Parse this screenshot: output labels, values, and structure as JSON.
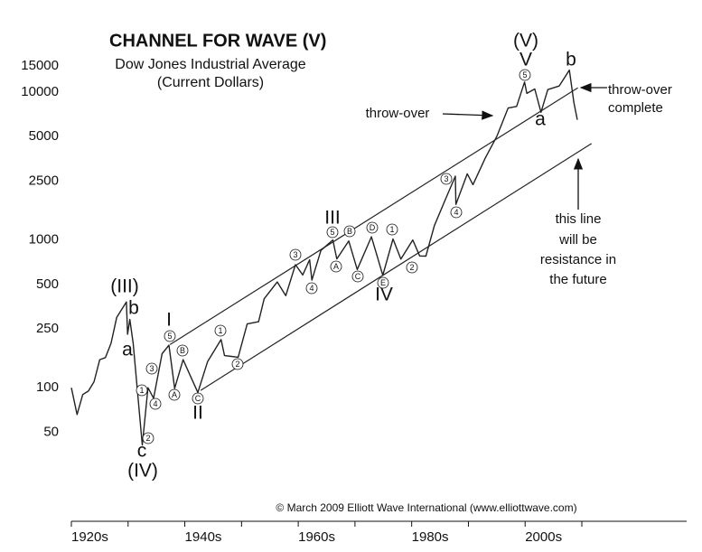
{
  "chart_data": {
    "type": "line",
    "title": "CHANNEL FOR WAVE (V)",
    "subtitle": [
      "Dow Jones Industrial Average",
      "(Current Dollars)"
    ],
    "source": "© March 2009 Elliott Wave International (www.elliottwave.com)",
    "log_y": true,
    "grid": false,
    "xlim": [
      1920,
      2028
    ],
    "ylim": [
      12.5,
      42000
    ],
    "xticks": [
      {
        "value": 1920,
        "label": "1920s"
      },
      {
        "value": 1940,
        "label": "1940s"
      },
      {
        "value": 1960,
        "label": "1960s"
      },
      {
        "value": 1980,
        "label": "1980s"
      },
      {
        "value": 2000,
        "label": "2000s"
      }
    ],
    "xminor_ticks": [
      1930,
      1950,
      1970,
      1990,
      2010
    ],
    "yticks": [
      50,
      100,
      250,
      500,
      1000,
      2500,
      5000,
      10000,
      15000
    ],
    "series": [
      {
        "color": "#222222",
        "x": [
          1920,
          1921,
          1922,
          1923,
          1924,
          1925,
          1926,
          1927,
          1928,
          1929.7,
          1929.9,
          1930.3,
          1930.9,
          1932.5,
          1933.5,
          1934.5,
          1936,
          1937.2,
          1938.2,
          1939.7,
          1941,
          1942.3,
          1944,
          1946.4,
          1947,
          1949.4,
          1951,
          1953,
          1954,
          1956.3,
          1957.8,
          1959.5,
          1960.8,
          1962,
          1962.4,
          1964,
          1966.1,
          1966.8,
          1968.9,
          1970.4,
          1972.9,
          1974.9,
          1976.7,
          1978.1,
          1980.2,
          1981.4,
          1982.5,
          1984,
          1986,
          1987.7,
          1987.8,
          1989.8,
          1990.8,
          1993,
          1995,
          1997,
          1998.5,
          1999.9,
          2000.3,
          2001.7,
          2002.8,
          2004,
          2006,
          2007.8,
          2008.6,
          2009.2
        ],
        "values": [
          100,
          66,
          90,
          95,
          110,
          155,
          160,
          200,
          300,
          381,
          230,
          290,
          200,
          41,
          100,
          85,
          170,
          194,
          99,
          155,
          120,
          93,
          150,
          212,
          165,
          161,
          270,
          280,
          400,
          520,
          420,
          680,
          580,
          735,
          535,
          850,
          1000,
          744,
          985,
          631,
          1050,
          577,
          1015,
          742,
          1000,
          780,
          777,
          1250,
          1900,
          2700,
          1740,
          2800,
          2365,
          3600,
          5000,
          7800,
          8000,
          11700,
          9800,
          10500,
          7300,
          10400,
          11000,
          14100,
          8500,
          6500
        ]
      },
      {
        "color": "#222222",
        "x": [
          1937.4,
          2009.3
        ],
        "values": [
          196,
          10700
        ]
      },
      {
        "color": "#222222",
        "x": [
          1942.8,
          2011.7
        ],
        "values": [
          96,
          4490
        ]
      }
    ],
    "wave_labels": [
      "(III)",
      "b",
      "a",
      "c",
      "(IV)",
      "I",
      "II",
      "III",
      "IV",
      "(V)",
      "V",
      "a",
      "b"
    ],
    "circled_labels": [
      "1",
      "2",
      "3",
      "4",
      "5",
      "A",
      "B",
      "C",
      "1",
      "2",
      "3",
      "4",
      "5",
      "B",
      "D",
      "1",
      "A",
      "C",
      "E",
      "2",
      "3",
      "4",
      "5"
    ],
    "notes": [
      [
        "throw-over"
      ],
      [
        "throw-over",
        "complete"
      ],
      [
        "this line",
        "will be",
        "resistance in",
        "the future"
      ]
    ]
  }
}
